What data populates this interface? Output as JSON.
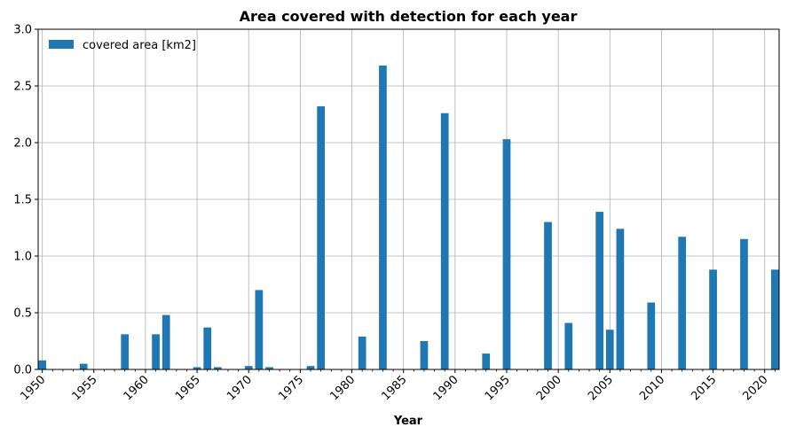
{
  "chart_data": {
    "type": "bar",
    "title": "Area covered with detection for each year",
    "xlabel": "Year",
    "ylabel": "",
    "legend": {
      "label": "covered area [km2]",
      "position": "top-left"
    },
    "grid": true,
    "ylim": [
      0,
      3.0
    ],
    "xlim": [
      1949.6,
      2021.4
    ],
    "yticks": [
      0.0,
      0.5,
      1.0,
      1.5,
      2.0,
      2.5,
      3.0
    ],
    "ytick_labels": [
      "0.0",
      "0.5",
      "1.0",
      "1.5",
      "2.0",
      "2.5",
      "3.0"
    ],
    "xticks": [
      1950,
      1955,
      1960,
      1965,
      1970,
      1975,
      1980,
      1985,
      1990,
      1995,
      2000,
      2005,
      2010,
      2015,
      2020
    ],
    "bar_color": "#1f77b4",
    "x": [
      1950,
      1951,
      1952,
      1953,
      1954,
      1955,
      1956,
      1957,
      1958,
      1959,
      1960,
      1961,
      1962,
      1963,
      1964,
      1965,
      1966,
      1967,
      1968,
      1969,
      1970,
      1971,
      1972,
      1973,
      1974,
      1975,
      1976,
      1977,
      1978,
      1979,
      1980,
      1981,
      1982,
      1983,
      1984,
      1985,
      1986,
      1987,
      1988,
      1989,
      1990,
      1991,
      1992,
      1993,
      1994,
      1995,
      1996,
      1997,
      1998,
      1999,
      2000,
      2001,
      2002,
      2003,
      2004,
      2005,
      2006,
      2007,
      2008,
      2009,
      2010,
      2011,
      2012,
      2013,
      2014,
      2015,
      2016,
      2017,
      2018,
      2019,
      2020,
      2021
    ],
    "values": [
      0.08,
      0,
      0,
      0,
      0.05,
      0,
      0,
      0,
      0.31,
      0,
      0,
      0.31,
      0.48,
      0,
      0,
      0.02,
      0.37,
      0.02,
      0,
      0,
      0.03,
      0.7,
      0.02,
      0,
      0,
      0,
      0.03,
      2.32,
      0,
      0,
      0,
      0.29,
      0,
      2.68,
      0,
      0,
      0,
      0.25,
      0,
      2.26,
      0,
      0,
      0,
      0.14,
      0,
      2.03,
      0,
      0,
      0,
      1.3,
      0,
      0.41,
      0,
      0,
      1.39,
      0.35,
      1.24,
      0,
      0,
      0.59,
      0,
      0,
      1.17,
      0,
      0,
      0.88,
      0,
      0,
      1.15,
      0,
      0,
      0.88
    ]
  }
}
